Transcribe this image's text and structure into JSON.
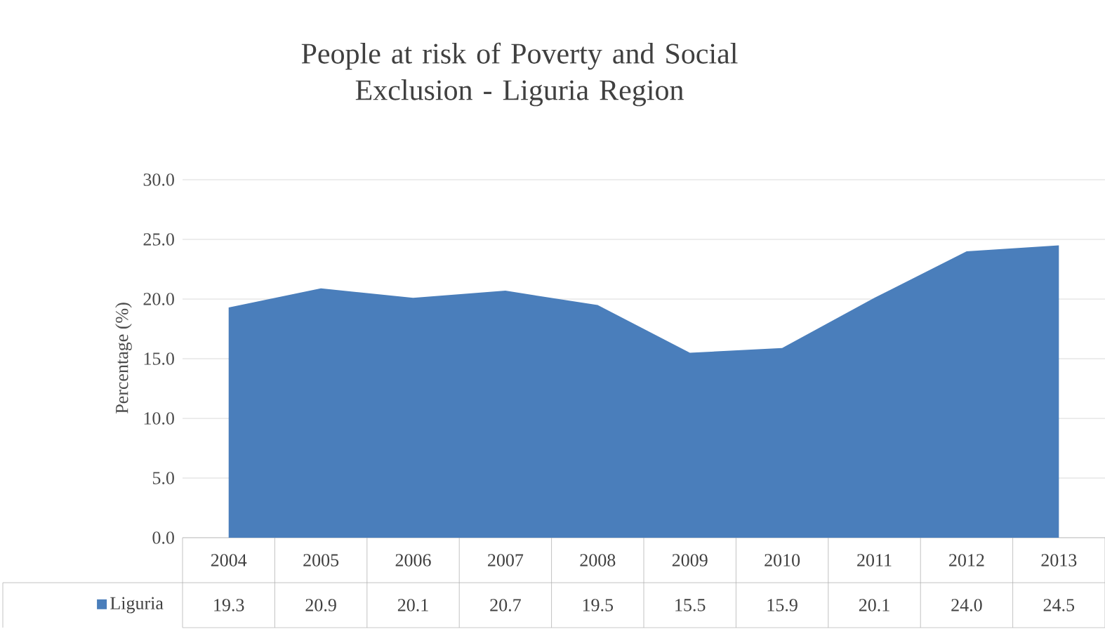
{
  "chart_data": {
    "type": "area",
    "title": "People at risk of Poverty and Social\nExclusion - Liguria Region",
    "ylabel": "Percentage (%)",
    "categories": [
      "2004",
      "2005",
      "2006",
      "2007",
      "2008",
      "2009",
      "2010",
      "2011",
      "2012",
      "2013"
    ],
    "series": [
      {
        "name": "Liguria",
        "color": "#4a7ebb",
        "values": [
          19.3,
          20.9,
          20.1,
          20.7,
          19.5,
          15.5,
          15.9,
          20.1,
          24.0,
          24.5
        ],
        "value_labels": [
          "19.3",
          "20.9",
          "20.1",
          "20.7",
          "19.5",
          "15.5",
          "15.9",
          "20.1",
          "24.0",
          "24.5"
        ]
      }
    ],
    "ylim": [
      0,
      30
    ],
    "yticks": [
      {
        "value": 0,
        "label": "0.0"
      },
      {
        "value": 5,
        "label": "5.0"
      },
      {
        "value": 10,
        "label": "10.0"
      },
      {
        "value": 15,
        "label": "15.0"
      },
      {
        "value": 20,
        "label": "20.0"
      },
      {
        "value": 25,
        "label": "25.0"
      },
      {
        "value": 30,
        "label": "30.0"
      }
    ],
    "grid": "y",
    "legend": "bottom"
  }
}
